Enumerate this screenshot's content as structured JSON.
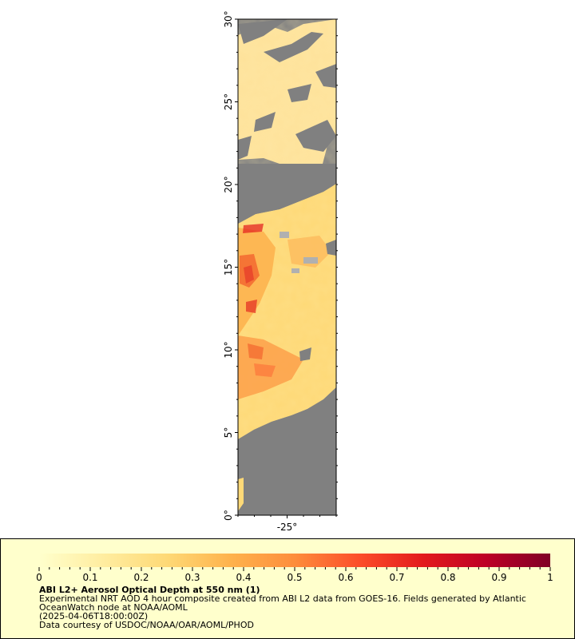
{
  "map": {
    "lat_axis": {
      "ticks": [
        0,
        5,
        10,
        15,
        20,
        25,
        30
      ],
      "labels": [
        "0°",
        "5°",
        "10°",
        "15°",
        "20°",
        "25°",
        "30°"
      ]
    },
    "lon_axis": {
      "ticks": [
        -25
      ],
      "labels": [
        "-25°"
      ]
    },
    "lon_range": [
      -28,
      -22
    ],
    "lat_range": [
      0,
      30
    ],
    "colors": {
      "land_mask": "#808080",
      "frame": "#000000"
    }
  },
  "chart_data": {
    "type": "heatmap",
    "variable": "ABI L2+ Aerosol Optical Depth at 550 nm",
    "colorbar": {
      "min": 0,
      "max": 1,
      "ticks": [
        0,
        0.1,
        0.2,
        0.3,
        0.4,
        0.5,
        0.6,
        0.7,
        0.8,
        0.9,
        1
      ],
      "tick_labels": [
        "0",
        "0.1",
        "0.2",
        "0.3",
        "0.4",
        "0.5",
        "0.6",
        "0.7",
        "0.8",
        "0.9",
        "1"
      ],
      "stops": [
        "#ffffcc",
        "#ffeda0",
        "#fed976",
        "#feb24c",
        "#fd8d3c",
        "#fc4e2a",
        "#e31a1c",
        "#bd0026",
        "#800026"
      ]
    }
  },
  "legend": {
    "title": "ABI L2+ Aerosol Optical Depth at 550 nm (1)",
    "line1": "Experimental NRT AOD 4 hour composite created from ABI L2 data from GOES-16. Fields generated by Atlantic OceanWatch node at NOAA/AOML",
    "line2": "(2025-04-06T18:00:00Z)",
    "line3": "Data courtesy of USDOC/NOAA/OAR/AOML/PHOD"
  }
}
